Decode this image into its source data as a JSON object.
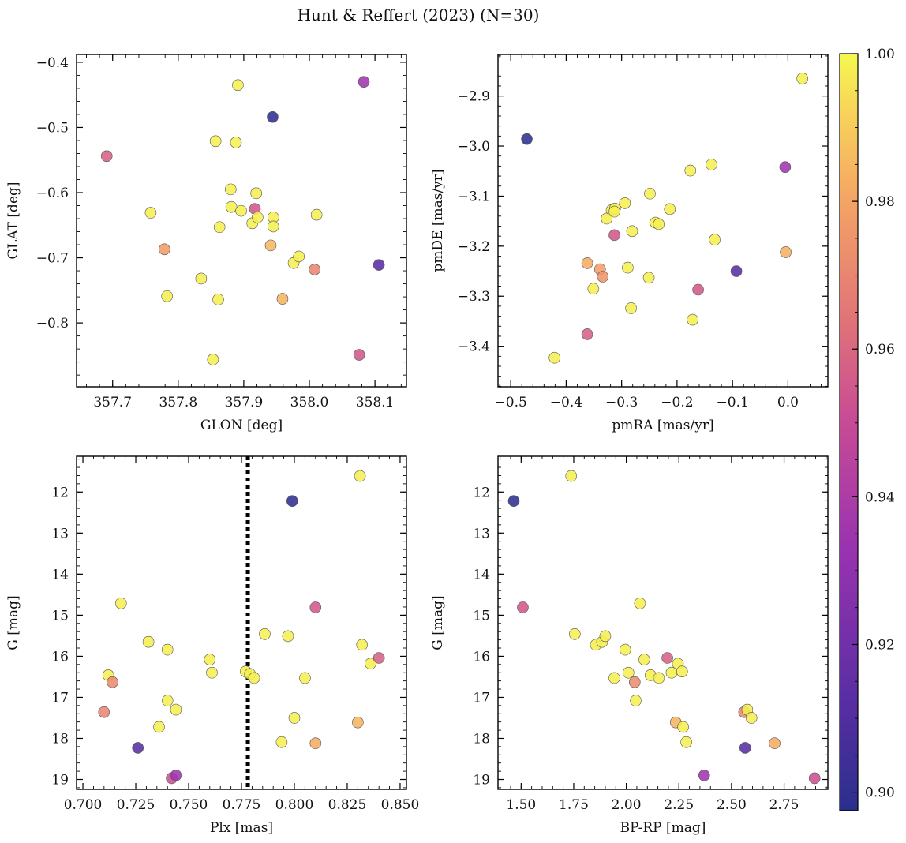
{
  "title": "Hunt & Reffert (2023) (N=30)",
  "colorbar": {
    "range": [
      0.8975,
      1.0
    ],
    "ticks": [
      0.9,
      0.92,
      0.94,
      0.96,
      0.98,
      1.0
    ],
    "tick_labels": [
      "0.90",
      "0.92",
      "0.94",
      "0.96",
      "0.98",
      "1.00"
    ]
  },
  "chart_data": [
    {
      "type": "scatter",
      "xlabel": "GLON [deg]",
      "ylabel": "GLAT [deg]",
      "xlim": [
        357.645,
        358.148
      ],
      "ylim": [
        -0.898,
        -0.388
      ],
      "xticks": [
        357.7,
        357.8,
        357.9,
        358.0,
        358.1
      ],
      "xtick_labels": [
        "357.7",
        "357.8",
        "357.9",
        "358.0",
        "358.1"
      ],
      "yticks": [
        -0.8,
        -0.7,
        -0.6,
        -0.5,
        -0.4
      ],
      "ytick_labels": [
        "−0.8",
        "−0.7",
        "−0.6",
        "−0.5",
        "−0.4"
      ],
      "points": [
        {
          "x": 357.691,
          "y": -0.544,
          "c": 0.958
        },
        {
          "x": 357.758,
          "y": -0.631,
          "c": 0.998
        },
        {
          "x": 357.779,
          "y": -0.687,
          "c": 0.977
        },
        {
          "x": 357.783,
          "y": -0.759,
          "c": 0.998
        },
        {
          "x": 357.835,
          "y": -0.732,
          "c": 0.998
        },
        {
          "x": 357.853,
          "y": -0.856,
          "c": 0.998
        },
        {
          "x": 357.857,
          "y": -0.521,
          "c": 0.998
        },
        {
          "x": 357.861,
          "y": -0.764,
          "c": 0.998
        },
        {
          "x": 357.863,
          "y": -0.653,
          "c": 0.998
        },
        {
          "x": 357.88,
          "y": -0.595,
          "c": 0.998
        },
        {
          "x": 357.881,
          "y": -0.622,
          "c": 0.998
        },
        {
          "x": 357.888,
          "y": -0.523,
          "c": 0.998
        },
        {
          "x": 357.891,
          "y": -0.435,
          "c": 0.998
        },
        {
          "x": 357.896,
          "y": -0.628,
          "c": 0.998
        },
        {
          "x": 357.913,
          "y": -0.647,
          "c": 0.998
        },
        {
          "x": 357.917,
          "y": -0.625,
          "c": 0.955
        },
        {
          "x": 357.919,
          "y": -0.601,
          "c": 0.998
        },
        {
          "x": 357.921,
          "y": -0.638,
          "c": 0.998
        },
        {
          "x": 357.941,
          "y": -0.681,
          "c": 0.985
        },
        {
          "x": 357.944,
          "y": -0.484,
          "c": 0.899
        },
        {
          "x": 357.945,
          "y": -0.638,
          "c": 0.998
        },
        {
          "x": 357.945,
          "y": -0.652,
          "c": 0.998
        },
        {
          "x": 357.959,
          "y": -0.763,
          "c": 0.984
        },
        {
          "x": 357.976,
          "y": -0.708,
          "c": 0.998
        },
        {
          "x": 357.984,
          "y": -0.698,
          "c": 0.998
        },
        {
          "x": 358.008,
          "y": -0.718,
          "c": 0.97
        },
        {
          "x": 358.011,
          "y": -0.634,
          "c": 0.998
        },
        {
          "x": 358.076,
          "y": -0.849,
          "c": 0.955
        },
        {
          "x": 358.083,
          "y": -0.43,
          "c": 0.935
        },
        {
          "x": 358.106,
          "y": -0.711,
          "c": 0.912
        }
      ]
    },
    {
      "type": "scatter",
      "xlabel": "pmRA [mas/yr]",
      "ylabel": "pmDE [mas/yr]",
      "xlim": [
        -0.523,
        0.072
      ],
      "ylim": [
        -3.481,
        -2.817
      ],
      "xticks": [
        -0.5,
        -0.4,
        -0.3,
        -0.2,
        -0.1,
        0.0
      ],
      "xtick_labels": [
        "−0.5",
        "−0.4",
        "−0.3",
        "−0.2",
        "−0.1",
        "0.0"
      ],
      "yticks": [
        -3.4,
        -3.3,
        -3.2,
        -3.1,
        -3.0,
        -2.9
      ],
      "ytick_labels": [
        "−3.4",
        "−3.3",
        "−3.2",
        "−3.1",
        "−3.0",
        "−2.9"
      ],
      "points": [
        {
          "x": -0.471,
          "y": -2.986,
          "c": 0.899
        },
        {
          "x": -0.421,
          "y": -3.423,
          "c": 0.998
        },
        {
          "x": -0.362,
          "y": -3.376,
          "c": 0.958
        },
        {
          "x": -0.362,
          "y": -3.234,
          "c": 0.982
        },
        {
          "x": -0.351,
          "y": -3.285,
          "c": 0.998
        },
        {
          "x": -0.339,
          "y": -3.246,
          "c": 0.978
        },
        {
          "x": -0.334,
          "y": -3.261,
          "c": 0.975
        },
        {
          "x": -0.327,
          "y": -3.145,
          "c": 0.998
        },
        {
          "x": -0.318,
          "y": -3.128,
          "c": 0.998
        },
        {
          "x": -0.313,
          "y": -3.178,
          "c": 0.955
        },
        {
          "x": -0.312,
          "y": -3.125,
          "c": 0.998
        },
        {
          "x": -0.313,
          "y": -3.131,
          "c": 0.998
        },
        {
          "x": -0.294,
          "y": -3.114,
          "c": 0.998
        },
        {
          "x": -0.289,
          "y": -3.243,
          "c": 0.998
        },
        {
          "x": -0.283,
          "y": -3.324,
          "c": 0.998
        },
        {
          "x": -0.281,
          "y": -3.17,
          "c": 0.998
        },
        {
          "x": -0.251,
          "y": -3.263,
          "c": 0.998
        },
        {
          "x": -0.249,
          "y": -3.095,
          "c": 0.998
        },
        {
          "x": -0.239,
          "y": -3.153,
          "c": 0.998
        },
        {
          "x": -0.233,
          "y": -3.156,
          "c": 0.998
        },
        {
          "x": -0.213,
          "y": -3.126,
          "c": 0.998
        },
        {
          "x": -0.176,
          "y": -3.049,
          "c": 0.998
        },
        {
          "x": -0.172,
          "y": -3.347,
          "c": 0.998
        },
        {
          "x": -0.162,
          "y": -3.287,
          "c": 0.955
        },
        {
          "x": -0.138,
          "y": -3.037,
          "c": 0.998
        },
        {
          "x": -0.132,
          "y": -3.187,
          "c": 0.998
        },
        {
          "x": -0.093,
          "y": -3.25,
          "c": 0.912
        },
        {
          "x": -0.005,
          "y": -3.042,
          "c": 0.935
        },
        {
          "x": -0.004,
          "y": -3.212,
          "c": 0.983
        },
        {
          "x": 0.026,
          "y": -2.865,
          "c": 0.998
        }
      ]
    },
    {
      "type": "scatter",
      "xlabel": "Plx [mas]",
      "ylabel": "G [mag]",
      "xlim": [
        0.697,
        0.853
      ],
      "ylim": [
        19.24,
        11.13
      ],
      "vline": 0.778,
      "xticks": [
        0.7,
        0.725,
        0.75,
        0.775,
        0.8,
        0.825,
        0.85
      ],
      "xtick_labels": [
        "0.700",
        "0.725",
        "0.750",
        "0.775",
        "0.800",
        "0.825",
        "0.850"
      ],
      "yticks": [
        12,
        13,
        14,
        15,
        16,
        17,
        18,
        19
      ],
      "ytick_labels": [
        "12",
        "13",
        "14",
        "15",
        "16",
        "17",
        "18",
        "19"
      ],
      "points": [
        {
          "x": 0.71,
          "y": 17.36,
          "c": 0.97
        },
        {
          "x": 0.712,
          "y": 16.46,
          "c": 0.998
        },
        {
          "x": 0.714,
          "y": 16.63,
          "c": 0.972
        },
        {
          "x": 0.718,
          "y": 14.71,
          "c": 0.998
        },
        {
          "x": 0.726,
          "y": 18.23,
          "c": 0.912
        },
        {
          "x": 0.731,
          "y": 15.65,
          "c": 0.998
        },
        {
          "x": 0.736,
          "y": 17.72,
          "c": 0.998
        },
        {
          "x": 0.74,
          "y": 15.84,
          "c": 0.998
        },
        {
          "x": 0.74,
          "y": 17.08,
          "c": 0.998
        },
        {
          "x": 0.742,
          "y": 18.97,
          "c": 0.952
        },
        {
          "x": 0.744,
          "y": 18.9,
          "c": 0.935
        },
        {
          "x": 0.744,
          "y": 17.3,
          "c": 0.998
        },
        {
          "x": 0.76,
          "y": 16.08,
          "c": 0.998
        },
        {
          "x": 0.761,
          "y": 16.4,
          "c": 0.998
        },
        {
          "x": 0.777,
          "y": 16.37,
          "c": 0.998
        },
        {
          "x": 0.779,
          "y": 16.43,
          "c": 0.998
        },
        {
          "x": 0.781,
          "y": 16.53,
          "c": 0.998
        },
        {
          "x": 0.786,
          "y": 15.46,
          "c": 0.998
        },
        {
          "x": 0.794,
          "y": 18.09,
          "c": 0.998
        },
        {
          "x": 0.797,
          "y": 15.51,
          "c": 0.998
        },
        {
          "x": 0.799,
          "y": 12.22,
          "c": 0.899
        },
        {
          "x": 0.8,
          "y": 17.5,
          "c": 0.998
        },
        {
          "x": 0.805,
          "y": 16.53,
          "c": 0.998
        },
        {
          "x": 0.81,
          "y": 14.81,
          "c": 0.955
        },
        {
          "x": 0.81,
          "y": 18.12,
          "c": 0.982
        },
        {
          "x": 0.83,
          "y": 17.61,
          "c": 0.984
        },
        {
          "x": 0.831,
          "y": 11.61,
          "c": 0.998
        },
        {
          "x": 0.832,
          "y": 15.72,
          "c": 0.998
        },
        {
          "x": 0.836,
          "y": 16.18,
          "c": 0.998
        },
        {
          "x": 0.84,
          "y": 16.04,
          "c": 0.958
        }
      ]
    },
    {
      "type": "scatter",
      "xlabel": "BP-RP [mag]",
      "ylabel": "G [mag]",
      "xlim": [
        1.39,
        2.958
      ],
      "ylim": [
        19.24,
        11.13
      ],
      "xticks": [
        1.5,
        1.75,
        2.0,
        2.25,
        2.5,
        2.75
      ],
      "xtick_labels": [
        "1.50",
        "1.75",
        "2.00",
        "2.25",
        "2.50",
        "2.75"
      ],
      "yticks": [
        12,
        13,
        14,
        15,
        16,
        17,
        18,
        19
      ],
      "ytick_labels": [
        "12",
        "13",
        "14",
        "15",
        "16",
        "17",
        "18",
        "19"
      ],
      "points": [
        {
          "x": 1.465,
          "y": 12.22,
          "c": 0.899
        },
        {
          "x": 1.508,
          "y": 14.81,
          "c": 0.955
        },
        {
          "x": 1.738,
          "y": 11.61,
          "c": 0.998
        },
        {
          "x": 1.755,
          "y": 15.46,
          "c": 0.998
        },
        {
          "x": 1.855,
          "y": 15.72,
          "c": 0.998
        },
        {
          "x": 1.885,
          "y": 15.65,
          "c": 0.998
        },
        {
          "x": 1.9,
          "y": 15.51,
          "c": 0.998
        },
        {
          "x": 1.943,
          "y": 16.53,
          "c": 0.998
        },
        {
          "x": 1.995,
          "y": 15.84,
          "c": 0.998
        },
        {
          "x": 2.01,
          "y": 16.4,
          "c": 0.998
        },
        {
          "x": 2.04,
          "y": 16.63,
          "c": 0.972
        },
        {
          "x": 2.045,
          "y": 17.08,
          "c": 0.998
        },
        {
          "x": 2.065,
          "y": 14.71,
          "c": 0.998
        },
        {
          "x": 2.085,
          "y": 16.08,
          "c": 0.998
        },
        {
          "x": 2.115,
          "y": 16.46,
          "c": 0.998
        },
        {
          "x": 2.155,
          "y": 16.53,
          "c": 0.998
        },
        {
          "x": 2.195,
          "y": 16.04,
          "c": 0.958
        },
        {
          "x": 2.215,
          "y": 16.4,
          "c": 0.998
        },
        {
          "x": 2.235,
          "y": 17.61,
          "c": 0.984
        },
        {
          "x": 2.245,
          "y": 16.18,
          "c": 0.998
        },
        {
          "x": 2.265,
          "y": 16.37,
          "c": 0.998
        },
        {
          "x": 2.27,
          "y": 17.72,
          "c": 0.998
        },
        {
          "x": 2.285,
          "y": 18.09,
          "c": 0.998
        },
        {
          "x": 2.37,
          "y": 18.9,
          "c": 0.935
        },
        {
          "x": 2.56,
          "y": 17.36,
          "c": 0.97
        },
        {
          "x": 2.565,
          "y": 18.23,
          "c": 0.912
        },
        {
          "x": 2.575,
          "y": 17.3,
          "c": 0.998
        },
        {
          "x": 2.595,
          "y": 17.5,
          "c": 0.998
        },
        {
          "x": 2.705,
          "y": 18.12,
          "c": 0.982
        },
        {
          "x": 2.895,
          "y": 18.97,
          "c": 0.952
        }
      ]
    }
  ]
}
